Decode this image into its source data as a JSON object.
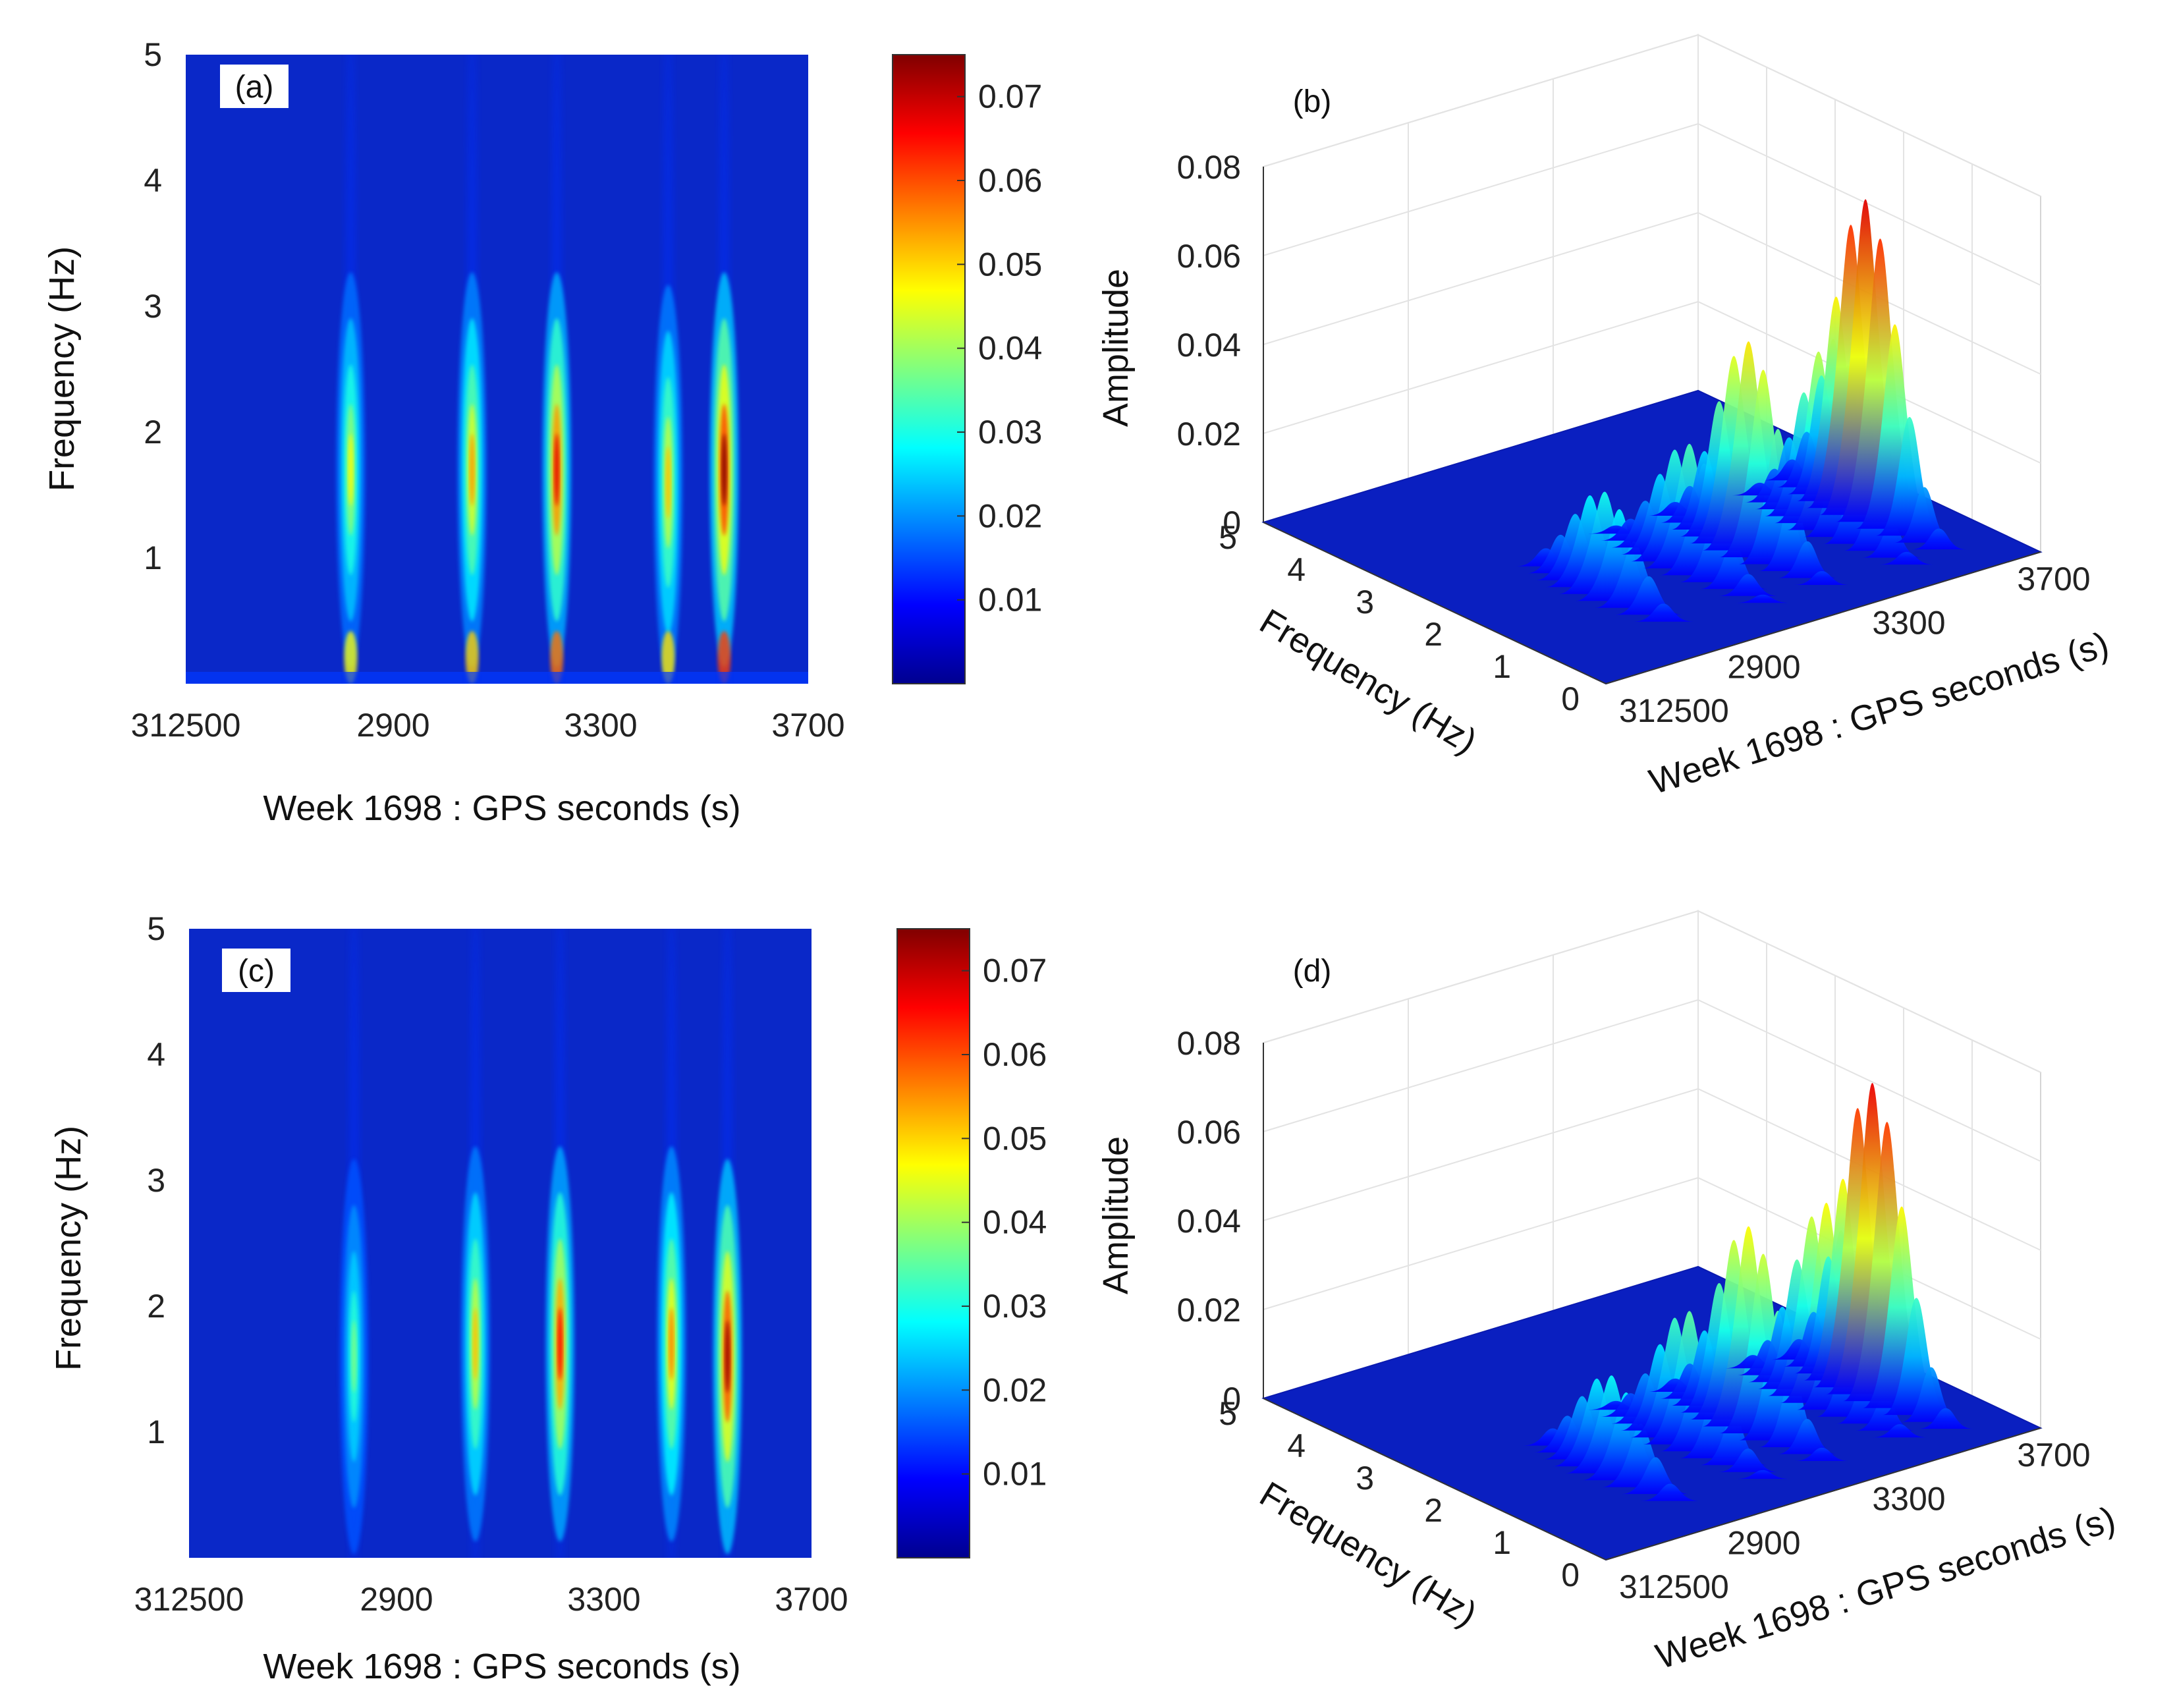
{
  "chart_data": [
    {
      "panel": "(a)",
      "type": "heatmap",
      "title": "",
      "xlabel": "Week 1698 : GPS seconds (s)",
      "ylabel": "Frequency (Hz)",
      "xticks": [
        "312500",
        "2900",
        "3300",
        "3700"
      ],
      "yticks": [
        "1",
        "2",
        "3",
        "4",
        "5"
      ],
      "ylim": [
        0,
        5
      ],
      "colorbar": {
        "ticks": [
          "0.01",
          "0.02",
          "0.03",
          "0.04",
          "0.05",
          "0.06",
          "0.07"
        ],
        "range": [
          0,
          0.075
        ]
      },
      "events": [
        {
          "x": 0.265,
          "f": 1.7,
          "amp": 0.04
        },
        {
          "x": 0.46,
          "f": 1.7,
          "amp": 0.048
        },
        {
          "x": 0.596,
          "f": 1.7,
          "amp": 0.062
        },
        {
          "x": 0.775,
          "f": 1.6,
          "amp": 0.045
        },
        {
          "x": 0.865,
          "f": 1.7,
          "amp": 0.07
        }
      ],
      "noise": true
    },
    {
      "panel": "(b)",
      "type": "surface3d",
      "xlabel": "Week 1698 : GPS seconds (s)",
      "ylabel": "Frequency (Hz)",
      "zlabel": "Amplitude",
      "xticks": [
        "312500",
        "2900",
        "3300",
        "3700"
      ],
      "yticks": [
        "0",
        "1",
        "2",
        "3",
        "4",
        "5"
      ],
      "zticks": [
        "0",
        "0.02",
        "0.04",
        "0.06",
        "0.08"
      ],
      "zlim": [
        0,
        0.08
      ],
      "peaks": [
        {
          "x": 0.265,
          "f": 1.7,
          "amp": 0.023
        },
        {
          "x": 0.46,
          "f": 1.7,
          "amp": 0.028
        },
        {
          "x": 0.596,
          "f": 1.7,
          "amp": 0.047
        },
        {
          "x": 0.775,
          "f": 1.6,
          "amp": 0.043
        },
        {
          "x": 0.865,
          "f": 1.7,
          "amp": 0.071
        }
      ]
    },
    {
      "panel": "(c)",
      "type": "heatmap",
      "title": "",
      "xlabel": "Week 1698 : GPS seconds (s)",
      "ylabel": "Frequency (Hz)",
      "xticks": [
        "312500",
        "2900",
        "3300",
        "3700"
      ],
      "yticks": [
        "1",
        "2",
        "3",
        "4",
        "5"
      ],
      "ylim": [
        0,
        5
      ],
      "colorbar": {
        "ticks": [
          "0.01",
          "0.02",
          "0.03",
          "0.04",
          "0.05",
          "0.06",
          "0.07"
        ],
        "range": [
          0,
          0.075
        ]
      },
      "events": [
        {
          "x": 0.265,
          "f": 1.6,
          "amp": 0.03
        },
        {
          "x": 0.46,
          "f": 1.7,
          "amp": 0.045
        },
        {
          "x": 0.596,
          "f": 1.7,
          "amp": 0.06
        },
        {
          "x": 0.775,
          "f": 1.7,
          "amp": 0.05
        },
        {
          "x": 0.865,
          "f": 1.6,
          "amp": 0.068
        }
      ],
      "noise": false
    },
    {
      "panel": "(d)",
      "type": "surface3d",
      "xlabel": "Week 1698 : GPS seconds (s)",
      "ylabel": "Frequency (Hz)",
      "zlabel": "Amplitude",
      "xticks": [
        "312500",
        "2900",
        "3300",
        "3700"
      ],
      "yticks": [
        "0",
        "1",
        "2",
        "3",
        "4",
        "5"
      ],
      "zticks": [
        "0",
        "0.02",
        "0.04",
        "0.06",
        "0.08"
      ],
      "zlim": [
        0,
        0.08
      ],
      "peaks": [
        {
          "x": 0.265,
          "f": 1.6,
          "amp": 0.022
        },
        {
          "x": 0.46,
          "f": 1.7,
          "amp": 0.03
        },
        {
          "x": 0.596,
          "f": 1.7,
          "amp": 0.045
        },
        {
          "x": 0.775,
          "f": 1.7,
          "amp": 0.045
        },
        {
          "x": 0.865,
          "f": 1.6,
          "amp": 0.07
        }
      ]
    }
  ]
}
